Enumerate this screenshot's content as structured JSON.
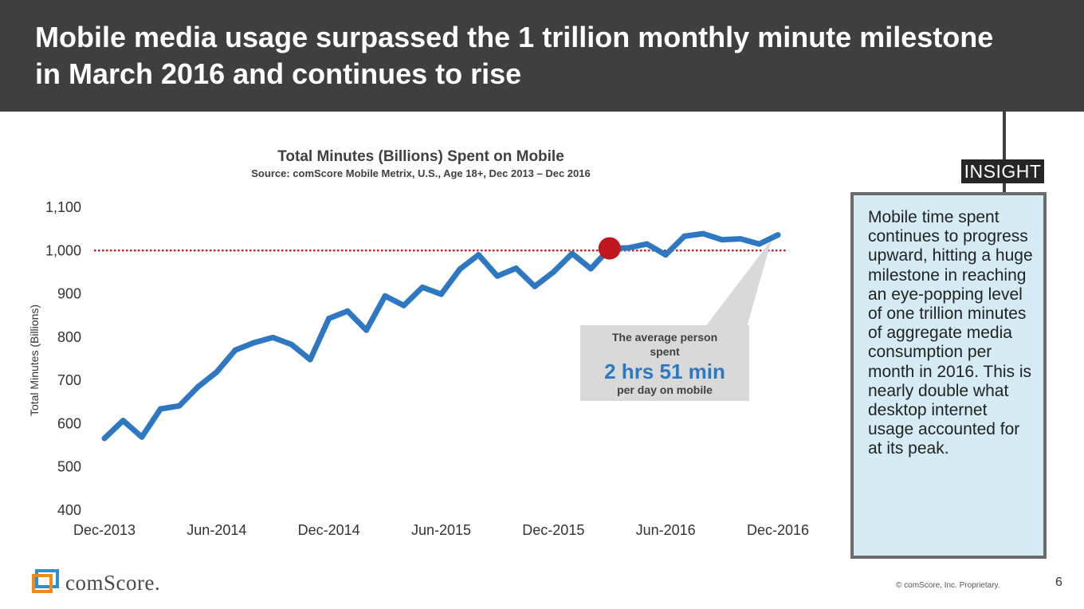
{
  "header": {
    "title_line1": "Mobile media usage surpassed the 1 trillion monthly minute milestone",
    "title_line2": "in March 2016 and continues to rise"
  },
  "insight": {
    "tag": "INSIGHT",
    "text": "Mobile time spent continues to progress upward, hitting a huge milestone in reaching an eye-popping level of one trillion minutes of aggregate media consumption per month in 2016. This is nearly double what desktop internet usage accounted for at its peak."
  },
  "callout": {
    "line1": "The average person",
    "line2": "spent",
    "big": "2 hrs 51 min",
    "line3": "per day on mobile"
  },
  "footer": {
    "logo_text": "comScore.",
    "copyright": "© comScore, Inc. Proprietary.",
    "page": "6"
  },
  "colors": {
    "line": "#2e78c2",
    "reference_line": "#c0282e",
    "marker": "#c0171f",
    "header_bg": "#3f3f3f"
  },
  "chart_data": {
    "type": "line",
    "title": "Total Minutes (Billions) Spent on Mobile",
    "subtitle": "Source: comScore Mobile Metrix, U.S., Age 18+, Dec 2013 – Dec 2016",
    "xlabel": "",
    "ylabel": "Total Minutes (Billions)",
    "ylim": [
      400,
      1100
    ],
    "yticks": [
      400,
      500,
      600,
      700,
      800,
      900,
      1000,
      1100
    ],
    "ytick_labels": [
      "400",
      "500",
      "600",
      "700",
      "800",
      "900",
      "1,000",
      "1,100"
    ],
    "xtick_labels": [
      "Dec-2013",
      "Jun-2014",
      "Dec-2014",
      "Jun-2015",
      "Dec-2015",
      "Jun-2016",
      "Dec-2016"
    ],
    "xtick_index": [
      0,
      6,
      12,
      18,
      24,
      30,
      36
    ],
    "reference_line": 1000,
    "milestone_index": 27,
    "milestone_value": 1005,
    "series": [
      {
        "name": "Total Minutes (Billions)",
        "values": [
          566,
          607,
          569,
          634,
          641,
          685,
          719,
          770,
          787,
          799,
          783,
          748,
          843,
          860,
          816,
          895,
          873,
          915,
          899,
          957,
          990,
          941,
          959,
          917,
          950,
          993,
          958,
          1005,
          1006,
          1015,
          990,
          1033,
          1039,
          1025,
          1027,
          1015,
          1036
        ]
      }
    ]
  }
}
